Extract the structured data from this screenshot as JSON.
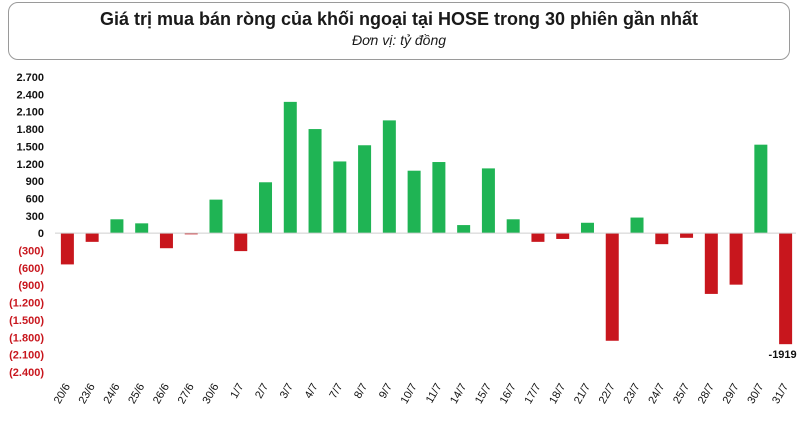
{
  "header": {
    "title": "Giá trị mua bán ròng của khối ngoại tại HOSE trong 30 phiên gần nhất",
    "subtitle": "Đơn vị: tỷ đồng"
  },
  "colors": {
    "positive": "#1fb454",
    "negative": "#c8161d",
    "tick_positive": "#111111",
    "tick_negative": "#c8161d"
  },
  "chart_data": {
    "type": "bar",
    "title": "Giá trị mua bán ròng của khối ngoại tại HOSE trong 30 phiên gần nhất",
    "subtitle": "Đơn vị: tỷ đồng",
    "categories": [
      "20/6",
      "23/6",
      "24/6",
      "25/6",
      "26/6",
      "27/6",
      "30/6",
      "1/7",
      "2/7",
      "3/7",
      "4/7",
      "7/7",
      "8/7",
      "9/7",
      "10/7",
      "11/7",
      "14/7",
      "15/7",
      "16/7",
      "17/7",
      "18/7",
      "21/7",
      "22/7",
      "23/7",
      "24/7",
      "25/7",
      "28/7",
      "29/7",
      "30/7",
      "31/7"
    ],
    "values": [
      -540,
      -150,
      240,
      170,
      -260,
      -20,
      580,
      -310,
      880,
      2270,
      1800,
      1240,
      1520,
      1950,
      1080,
      1230,
      140,
      1120,
      240,
      -150,
      -100,
      180,
      -1860,
      270,
      -190,
      -80,
      -1050,
      -890,
      1530,
      -1919
    ],
    "ylim": [
      -2400,
      2700
    ],
    "yticks": [
      2700,
      2400,
      2100,
      1800,
      1500,
      1200,
      900,
      600,
      300,
      0,
      -300,
      -600,
      -900,
      -1200,
      -1500,
      -1800,
      -2100,
      -2400
    ],
    "ytick_labels": [
      "2.700",
      "2.400",
      "2.100",
      "1.800",
      "1.500",
      "1.200",
      "900",
      "600",
      "300",
      "0",
      "(300)",
      "(600)",
      "(900)",
      "(1.200)",
      "(1.500)",
      "(1.800)",
      "(2.100)",
      "(2.400)"
    ],
    "data_labels": [
      {
        "index": 29,
        "text": "-1919"
      }
    ],
    "grid": false,
    "xlabel": "",
    "ylabel": ""
  }
}
